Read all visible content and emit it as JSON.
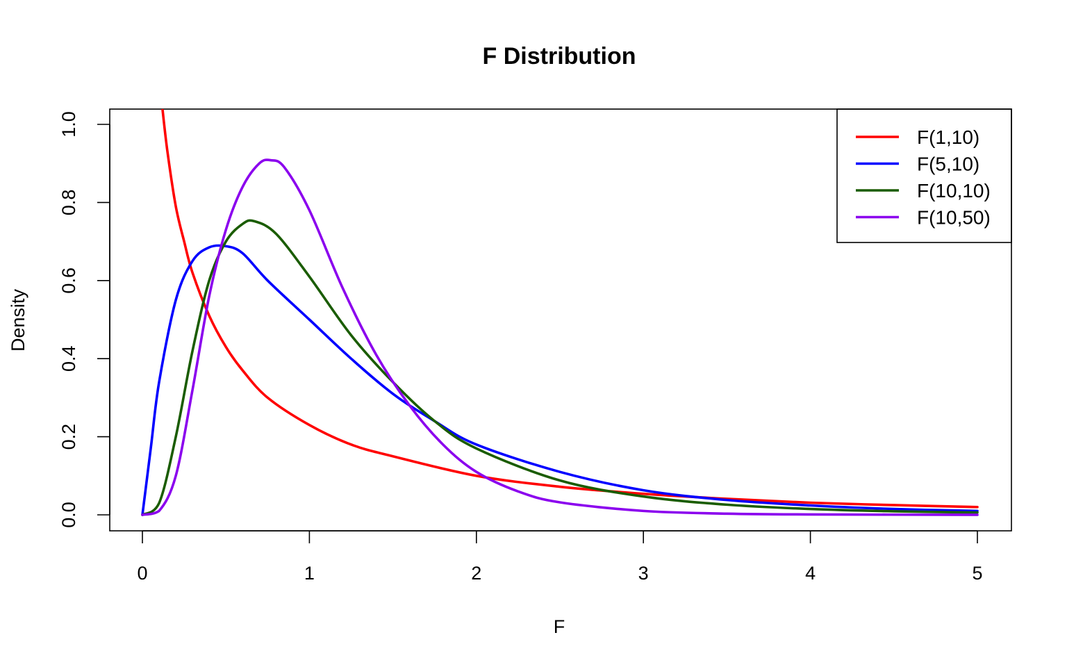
{
  "chart_data": {
    "type": "line",
    "title": "F Distribution",
    "xlabel": "F",
    "ylabel": "Density",
    "xlim": [
      0,
      5
    ],
    "ylim": [
      0,
      1.0
    ],
    "x_ticks": [
      0,
      1,
      2,
      3,
      4,
      5
    ],
    "x_tick_labels": [
      "0",
      "1",
      "2",
      "3",
      "4",
      "5"
    ],
    "y_ticks": [
      0,
      0.2,
      0.4,
      0.6,
      0.8,
      1.0
    ],
    "y_tick_labels": [
      "0.0",
      "0.2",
      "0.4",
      "0.6",
      "0.8",
      "1.0"
    ],
    "grid": false,
    "legend_position": "top-right",
    "series": [
      {
        "name": "F(1,10)",
        "color": "#ff0000",
        "x": [
          0.12,
          0.15,
          0.2,
          0.25,
          0.3,
          0.4,
          0.5,
          0.6,
          0.75,
          1.0,
          1.25,
          1.5,
          2.0,
          2.5,
          3.0,
          3.5,
          4.0,
          4.5,
          5.0
        ],
        "values": [
          1.04,
          0.93,
          0.79,
          0.7,
          0.62,
          0.51,
          0.43,
          0.37,
          0.3,
          0.23,
          0.18,
          0.15,
          0.1,
          0.072,
          0.054,
          0.041,
          0.031,
          0.025,
          0.02
        ]
      },
      {
        "name": "F(5,10)",
        "color": "#0000ff",
        "x": [
          0,
          0.05,
          0.1,
          0.2,
          0.3,
          0.4,
          0.5,
          0.6,
          0.75,
          1.0,
          1.25,
          1.5,
          1.75,
          2.0,
          2.5,
          3.0,
          3.5,
          4.0,
          4.5,
          5.0
        ],
        "values": [
          0,
          0.17,
          0.34,
          0.55,
          0.65,
          0.685,
          0.688,
          0.67,
          0.6,
          0.5,
          0.4,
          0.31,
          0.24,
          0.18,
          0.11,
          0.063,
          0.038,
          0.024,
          0.015,
          0.01
        ]
      },
      {
        "name": "F(10,10)",
        "color": "#1a5c00",
        "x": [
          0,
          0.1,
          0.2,
          0.3,
          0.4,
          0.5,
          0.6,
          0.67,
          0.8,
          1.0,
          1.25,
          1.5,
          1.75,
          2.0,
          2.5,
          3.0,
          3.5,
          4.0,
          4.5,
          5.0
        ],
        "values": [
          0,
          0.03,
          0.2,
          0.42,
          0.6,
          0.7,
          0.745,
          0.752,
          0.72,
          0.61,
          0.46,
          0.34,
          0.24,
          0.17,
          0.088,
          0.047,
          0.026,
          0.015,
          0.009,
          0.006
        ]
      },
      {
        "name": "F(10,50)",
        "color": "#8b00ee",
        "x": [
          0,
          0.1,
          0.2,
          0.3,
          0.4,
          0.5,
          0.6,
          0.7,
          0.77,
          0.85,
          1.0,
          1.2,
          1.4,
          1.6,
          1.8,
          2.0,
          2.25,
          2.5,
          3.0,
          3.5,
          4.0,
          5.0
        ],
        "values": [
          0,
          0.01,
          0.1,
          0.32,
          0.56,
          0.73,
          0.84,
          0.9,
          0.908,
          0.89,
          0.78,
          0.58,
          0.41,
          0.28,
          0.18,
          0.11,
          0.06,
          0.032,
          0.01,
          0.003,
          0.001,
          0.0
        ]
      }
    ]
  }
}
